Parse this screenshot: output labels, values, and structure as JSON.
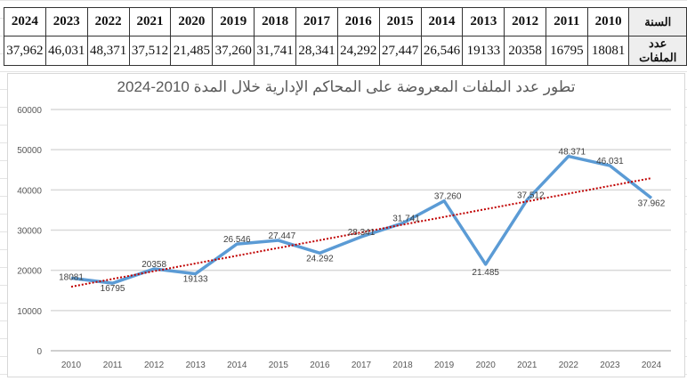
{
  "table": {
    "row_year_label": "السنة",
    "row_count_label": "عدد الملفات",
    "years": [
      "2024",
      "2023",
      "2022",
      "2021",
      "2020",
      "2019",
      "2018",
      "2017",
      "2016",
      "2015",
      "2014",
      "2013",
      "2012",
      "2011",
      "2010"
    ],
    "counts": [
      "37,962",
      "46,031",
      "48,371",
      "37,512",
      "21,485",
      "37,260",
      "31,741",
      "28,341",
      "24,292",
      "27,447",
      "26,546",
      "19133",
      "20358",
      "16795",
      "18081"
    ]
  },
  "chart_data": {
    "type": "line",
    "title": "تطور عدد الملفات المعروضة على المحاكم الإدارية خلال المدة 2010-2024",
    "x": [
      "2010",
      "2011",
      "2012",
      "2013",
      "2014",
      "2015",
      "2016",
      "2017",
      "2018",
      "2019",
      "2020",
      "2021",
      "2022",
      "2023",
      "2024"
    ],
    "series": [
      {
        "name": "عدد الملفات",
        "values": [
          18081,
          16795,
          20358,
          19133,
          26546,
          27447,
          24292,
          28341,
          31741,
          37260,
          21485,
          37512,
          48371,
          46031,
          37962
        ],
        "color": "#5b9bd5"
      }
    ],
    "data_labels": [
      "18081",
      "16795",
      "20358",
      "19133",
      "26.546",
      "27.447",
      "24.292",
      "28.341",
      "31.741",
      "37.260",
      "21.485",
      "37.512",
      "48.371",
      "46.031",
      "37.962"
    ],
    "trendline": {
      "type": "linear",
      "color": "#c00000"
    },
    "yticks": [
      "0",
      "10000",
      "20000",
      "30000",
      "40000",
      "50000",
      "60000"
    ],
    "ylim": [
      0,
      60000
    ],
    "grid": true,
    "legend": "none"
  }
}
